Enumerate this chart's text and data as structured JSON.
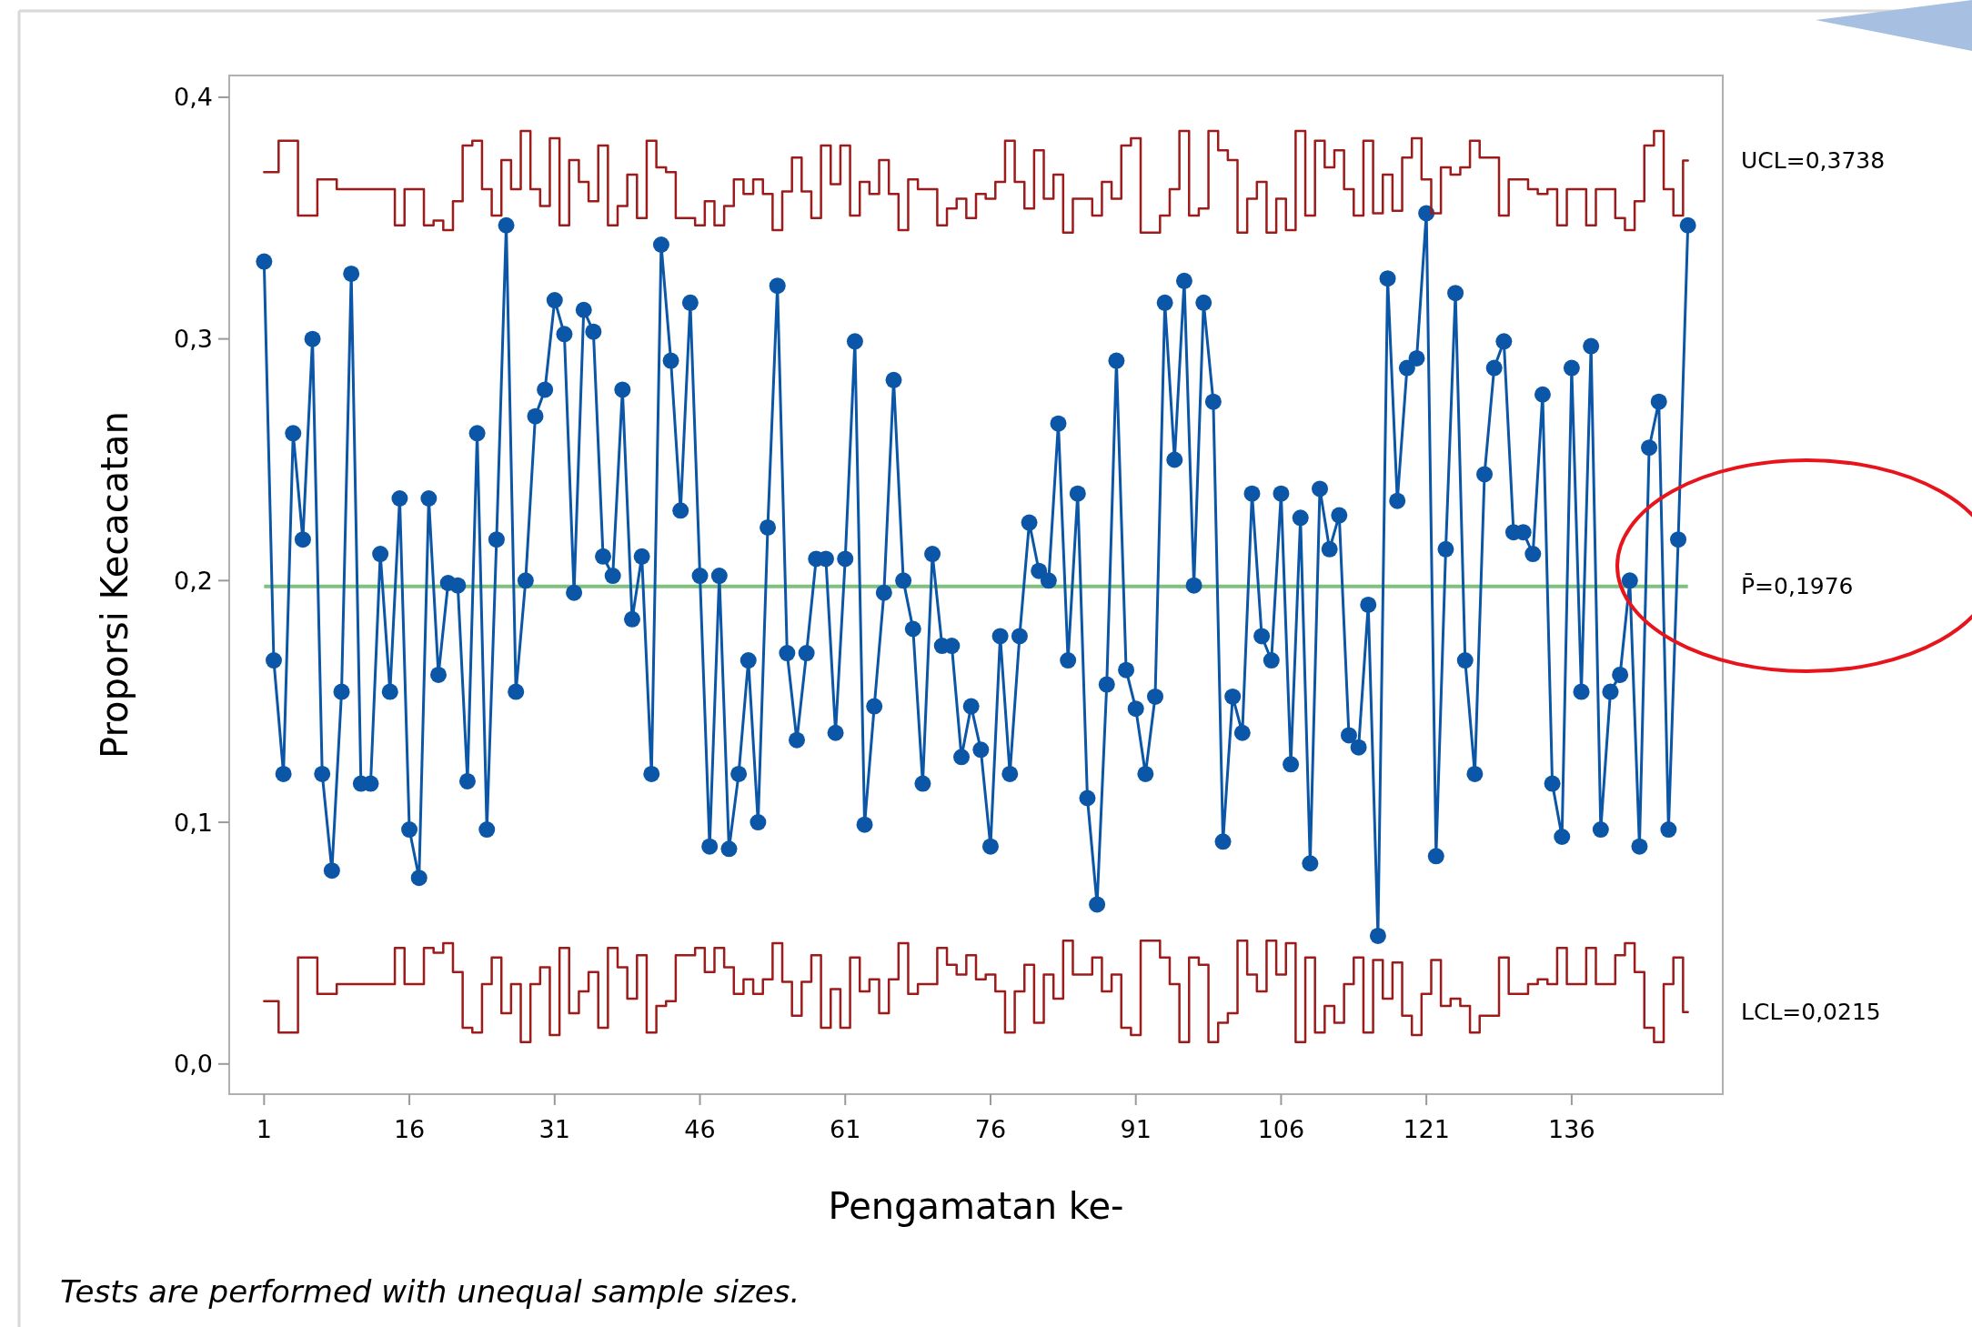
{
  "chart_data": {
    "type": "line",
    "xlabel": "Pengamatan ke-",
    "ylabel": "Proporsi Kecacatan",
    "annotations": [
      "Tests are performed with unequal sample sizes."
    ],
    "x": [
      1,
      2,
      3,
      4,
      5,
      6,
      7,
      8,
      9,
      10,
      11,
      12,
      13,
      14,
      15,
      16,
      17,
      18,
      19,
      20,
      21,
      22,
      23,
      24,
      25,
      26,
      27,
      28,
      29,
      30,
      31,
      32,
      33,
      34,
      35,
      36,
      37,
      38,
      39,
      40,
      41,
      42,
      43,
      44,
      45,
      46,
      47,
      48,
      49,
      50,
      51,
      52,
      53,
      54,
      55,
      56,
      57,
      58,
      59,
      60,
      61,
      62,
      63,
      64,
      65,
      66,
      67,
      68,
      69,
      70,
      71,
      72,
      73,
      74,
      75,
      76,
      77,
      78,
      79,
      80,
      81,
      82,
      83,
      84,
      85,
      86,
      87,
      88,
      89,
      90,
      91,
      92,
      93,
      94,
      95,
      96,
      97,
      98,
      99,
      100,
      101,
      102,
      103,
      104,
      105,
      106,
      107,
      108,
      109,
      110,
      111,
      112,
      113,
      114,
      115,
      116,
      117,
      118,
      119,
      120,
      121,
      122,
      123,
      124,
      125,
      126,
      127,
      128,
      129,
      130,
      131,
      132,
      133,
      134,
      135,
      136,
      137,
      138,
      139,
      140,
      141,
      142,
      143,
      144,
      145,
      146,
      147,
      148
    ],
    "series": [
      {
        "color": "#0b56a6",
        "marker": "circle",
        "values": [
          0.332,
          0.167,
          0.12,
          0.261,
          0.217,
          0.3,
          0.12,
          0.08,
          0.154,
          0.327,
          0.116,
          0.116,
          0.211,
          0.154,
          0.234,
          0.097,
          0.077,
          0.234,
          0.161,
          0.199,
          0.198,
          0.117,
          0.261,
          0.097,
          0.217,
          0.347,
          0.154,
          0.2,
          0.268,
          0.279,
          0.316,
          0.302,
          0.195,
          0.312,
          0.303,
          0.21,
          0.202,
          0.279,
          0.184,
          0.21,
          0.12,
          0.339,
          0.291,
          0.229,
          0.315,
          0.202,
          0.09,
          0.202,
          0.089,
          0.12,
          0.167,
          0.1,
          0.222,
          0.322,
          0.17,
          0.134,
          0.17,
          0.209,
          0.209,
          0.137,
          0.209,
          0.299,
          0.099,
          0.148,
          0.195,
          0.283,
          0.2,
          0.18,
          0.116,
          0.211,
          0.173,
          0.173,
          0.127,
          0.148,
          0.13,
          0.09,
          0.177,
          0.12,
          0.177,
          0.224,
          0.204,
          0.2,
          0.265,
          0.167,
          0.236,
          0.11,
          0.066,
          0.157,
          0.291,
          0.163,
          0.147,
          0.12,
          0.152,
          0.315,
          0.25,
          0.324,
          0.198,
          0.315,
          0.274,
          0.092,
          0.152,
          0.137,
          0.236,
          0.177,
          0.167,
          0.236,
          0.124,
          0.226,
          0.083,
          0.238,
          0.213,
          0.227,
          0.136,
          0.131,
          0.19,
          0.053,
          0.325,
          0.233,
          0.288,
          0.292,
          0.352,
          0.086,
          0.213,
          0.319,
          0.167,
          0.12,
          0.244,
          0.288,
          0.299,
          0.22,
          0.22,
          0.211,
          0.277,
          0.116,
          0.094,
          0.288,
          0.154,
          0.297,
          0.097,
          0.154,
          0.161,
          0.2,
          0.09,
          0.255,
          0.274,
          0.097,
          0.217,
          0.347
        ]
      },
      {
        "type": "step",
        "name": "UCL=0,3738",
        "color": "#9e1b1b",
        "marker": "none",
        "values": [
          0.369,
          0.369,
          0.382,
          0.382,
          0.351,
          0.351,
          0.366,
          0.366,
          0.362,
          0.362,
          0.362,
          0.362,
          0.362,
          0.362,
          0.347,
          0.362,
          0.362,
          0.347,
          0.349,
          0.345,
          0.357,
          0.38,
          0.382,
          0.362,
          0.351,
          0.374,
          0.362,
          0.386,
          0.362,
          0.355,
          0.383,
          0.347,
          0.374,
          0.365,
          0.357,
          0.38,
          0.347,
          0.355,
          0.368,
          0.35,
          0.382,
          0.371,
          0.369,
          0.35,
          0.35,
          0.347,
          0.357,
          0.347,
          0.355,
          0.366,
          0.36,
          0.366,
          0.36,
          0.345,
          0.361,
          0.375,
          0.361,
          0.35,
          0.38,
          0.364,
          0.38,
          0.351,
          0.365,
          0.36,
          0.374,
          0.36,
          0.345,
          0.366,
          0.362,
          0.362,
          0.347,
          0.354,
          0.358,
          0.35,
          0.36,
          0.358,
          0.365,
          0.382,
          0.365,
          0.354,
          0.378,
          0.358,
          0.368,
          0.344,
          0.358,
          0.358,
          0.351,
          0.365,
          0.358,
          0.38,
          0.383,
          0.344,
          0.344,
          0.351,
          0.362,
          0.386,
          0.351,
          0.354,
          0.386,
          0.378,
          0.374,
          0.344,
          0.358,
          0.365,
          0.344,
          0.358,
          0.345,
          0.386,
          0.351,
          0.382,
          0.371,
          0.378,
          0.362,
          0.351,
          0.382,
          0.352,
          0.368,
          0.353,
          0.375,
          0.383,
          0.366,
          0.352,
          0.371,
          0.368,
          0.371,
          0.382,
          0.375,
          0.375,
          0.351,
          0.366,
          0.366,
          0.362,
          0.36,
          0.362,
          0.347,
          0.362,
          0.362,
          0.347,
          0.362,
          0.362,
          0.35,
          0.345,
          0.357,
          0.38,
          0.386,
          0.362,
          0.351,
          0.3738
        ]
      },
      {
        "type": "step",
        "name": "LCL=0,0215",
        "color": "#9e1b1b",
        "marker": "none",
        "values": [
          0.026,
          0.026,
          0.013,
          0.013,
          0.044,
          0.044,
          0.029,
          0.029,
          0.033,
          0.033,
          0.033,
          0.033,
          0.033,
          0.033,
          0.048,
          0.033,
          0.033,
          0.048,
          0.046,
          0.05,
          0.038,
          0.015,
          0.013,
          0.033,
          0.044,
          0.021,
          0.033,
          0.009,
          0.033,
          0.04,
          0.012,
          0.048,
          0.021,
          0.03,
          0.038,
          0.015,
          0.048,
          0.04,
          0.027,
          0.045,
          0.013,
          0.024,
          0.026,
          0.045,
          0.045,
          0.048,
          0.038,
          0.048,
          0.04,
          0.029,
          0.035,
          0.029,
          0.035,
          0.05,
          0.034,
          0.02,
          0.034,
          0.045,
          0.015,
          0.031,
          0.015,
          0.044,
          0.03,
          0.035,
          0.021,
          0.035,
          0.05,
          0.029,
          0.033,
          0.033,
          0.048,
          0.041,
          0.037,
          0.045,
          0.035,
          0.037,
          0.03,
          0.013,
          0.03,
          0.041,
          0.017,
          0.037,
          0.027,
          0.051,
          0.037,
          0.037,
          0.044,
          0.03,
          0.037,
          0.015,
          0.012,
          0.051,
          0.051,
          0.044,
          0.033,
          0.009,
          0.044,
          0.041,
          0.009,
          0.017,
          0.021,
          0.051,
          0.037,
          0.03,
          0.051,
          0.037,
          0.05,
          0.009,
          0.044,
          0.013,
          0.024,
          0.017,
          0.033,
          0.044,
          0.013,
          0.043,
          0.027,
          0.042,
          0.02,
          0.012,
          0.029,
          0.043,
          0.024,
          0.027,
          0.024,
          0.013,
          0.02,
          0.02,
          0.044,
          0.029,
          0.029,
          0.033,
          0.035,
          0.033,
          0.048,
          0.033,
          0.033,
          0.048,
          0.033,
          0.033,
          0.045,
          0.05,
          0.038,
          0.015,
          0.009,
          0.033,
          0.044,
          0.0215
        ]
      }
    ],
    "ref_lines": [
      {
        "axis": "y",
        "value": 0.1976,
        "label": "P̄=0,1976",
        "color": "#80c080"
      }
    ],
    "xlim": [
      -2.6,
      151.6
    ],
    "xticks": [
      1,
      16,
      31,
      46,
      61,
      76,
      91,
      106,
      121,
      136
    ],
    "ylim": [
      -0.0125,
      0.409
    ],
    "yticks": [
      {
        "value": 0,
        "label": "0,0"
      },
      {
        "value": 0.1,
        "label": "0,1"
      },
      {
        "value": 0.2,
        "label": "0,2"
      },
      {
        "value": 0.3,
        "label": "0,3"
      },
      {
        "value": 0.4,
        "label": "0,4"
      }
    ],
    "line_style": "solid",
    "legend": false
  }
}
